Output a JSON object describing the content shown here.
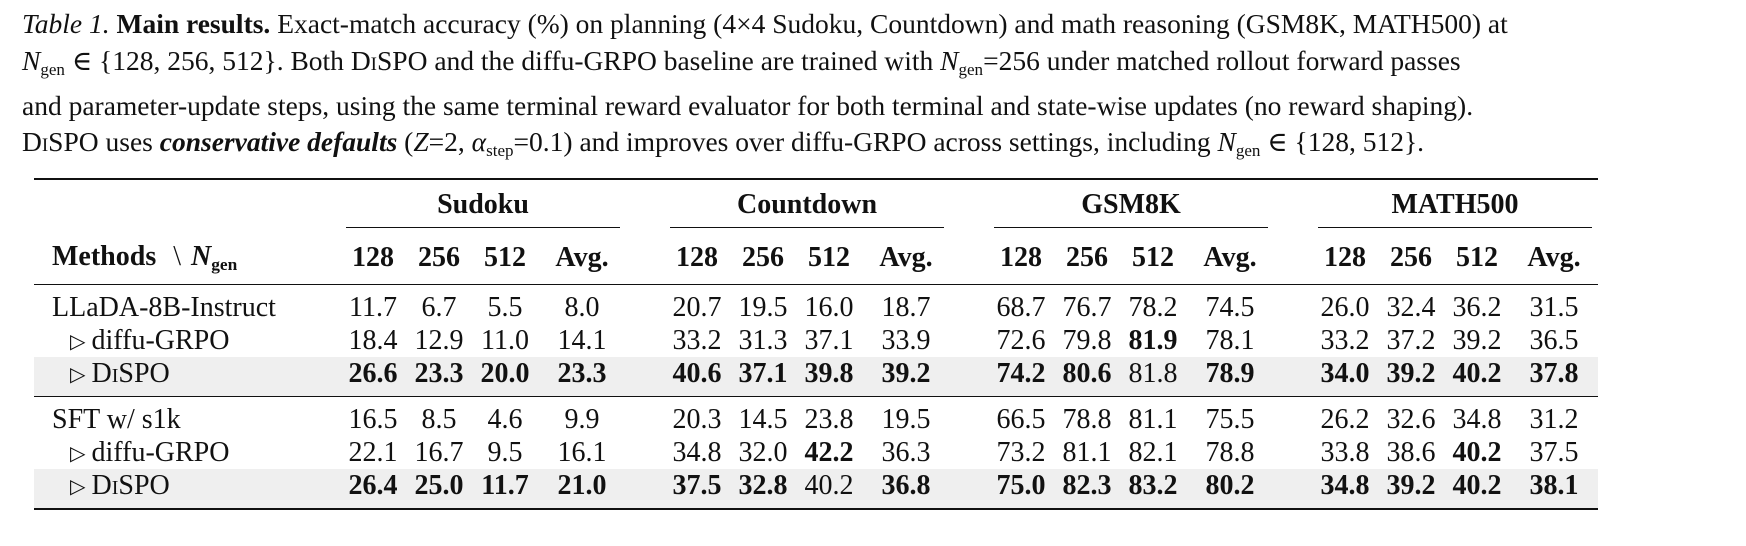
{
  "caption": {
    "label": "Table 1.",
    "title": "Main results.",
    "t1": " Exact-match accuracy (%) on planning (4×4 Sudoku, Countdown) and math reasoning (GSM8K, MATH500) at",
    "n_sym": "N",
    "n_sub": "gen",
    "t2": " ∈ {128, 256, 512}. Both ",
    "method_name": "DiSPO",
    "t3": " and the diffu-GRPO baseline are trained with ",
    "t4": "=256 under matched rollout forward passes",
    "line3": "and parameter-update steps, using the same terminal reward evaluator for both terminal and state-wise updates (no reward shaping).",
    "t5": " uses ",
    "emph": "conservative defaults",
    "t6": " (",
    "z_sym": "Z",
    "t7": "=2, ",
    "alpha_sym": "α",
    "alpha_sub": "step",
    "t8": "=0.1) and improves over diffu-GRPO across settings, including ",
    "t9": " ∈ {128, 512}."
  },
  "table": {
    "groups": [
      "Sudoku",
      "Countdown",
      "GSM8K",
      "MATH500"
    ],
    "method_header": "Methods",
    "header_sep": "\\",
    "subcols": [
      "128",
      "256",
      "512",
      "Avg."
    ],
    "row_prefix": "▷",
    "blocks": [
      {
        "rows": [
          {
            "method": "LLaDA-8B-Instruct",
            "sub": false,
            "highlight": false,
            "cells": [
              [
                "11.7",
                false
              ],
              [
                "6.7",
                false
              ],
              [
                "5.5",
                false
              ],
              [
                "8.0",
                false
              ],
              [
                "20.7",
                false
              ],
              [
                "19.5",
                false
              ],
              [
                "16.0",
                false
              ],
              [
                "18.7",
                false
              ],
              [
                "68.7",
                false
              ],
              [
                "76.7",
                false
              ],
              [
                "78.2",
                false
              ],
              [
                "74.5",
                false
              ],
              [
                "26.0",
                false
              ],
              [
                "32.4",
                false
              ],
              [
                "36.2",
                false
              ],
              [
                "31.5",
                false
              ]
            ]
          },
          {
            "method": "diffu-GRPO",
            "sub": true,
            "highlight": false,
            "cells": [
              [
                "18.4",
                false
              ],
              [
                "12.9",
                false
              ],
              [
                "11.0",
                false
              ],
              [
                "14.1",
                false
              ],
              [
                "33.2",
                false
              ],
              [
                "31.3",
                false
              ],
              [
                "37.1",
                false
              ],
              [
                "33.9",
                false
              ],
              [
                "72.6",
                false
              ],
              [
                "79.8",
                false
              ],
              [
                "81.9",
                true
              ],
              [
                "78.1",
                false
              ],
              [
                "33.2",
                false
              ],
              [
                "37.2",
                false
              ],
              [
                "39.2",
                false
              ],
              [
                "36.5",
                false
              ]
            ]
          },
          {
            "method": "DiSPO",
            "sub": true,
            "highlight": true,
            "smallcaps": true,
            "cells": [
              [
                "26.6",
                true
              ],
              [
                "23.3",
                true
              ],
              [
                "20.0",
                true
              ],
              [
                "23.3",
                true
              ],
              [
                "40.6",
                true
              ],
              [
                "37.1",
                true
              ],
              [
                "39.8",
                true
              ],
              [
                "39.2",
                true
              ],
              [
                "74.2",
                true
              ],
              [
                "80.6",
                true
              ],
              [
                "81.8",
                false
              ],
              [
                "78.9",
                true
              ],
              [
                "34.0",
                true
              ],
              [
                "39.2",
                true
              ],
              [
                "40.2",
                true
              ],
              [
                "37.8",
                true
              ]
            ]
          }
        ]
      },
      {
        "rows": [
          {
            "method": "SFT w/ s1k",
            "sub": false,
            "highlight": false,
            "cells": [
              [
                "16.5",
                false
              ],
              [
                "8.5",
                false
              ],
              [
                "4.6",
                false
              ],
              [
                "9.9",
                false
              ],
              [
                "20.3",
                false
              ],
              [
                "14.5",
                false
              ],
              [
                "23.8",
                false
              ],
              [
                "19.5",
                false
              ],
              [
                "66.5",
                false
              ],
              [
                "78.8",
                false
              ],
              [
                "81.1",
                false
              ],
              [
                "75.5",
                false
              ],
              [
                "26.2",
                false
              ],
              [
                "32.6",
                false
              ],
              [
                "34.8",
                false
              ],
              [
                "31.2",
                false
              ]
            ]
          },
          {
            "method": "diffu-GRPO",
            "sub": true,
            "highlight": false,
            "cells": [
              [
                "22.1",
                false
              ],
              [
                "16.7",
                false
              ],
              [
                "9.5",
                false
              ],
              [
                "16.1",
                false
              ],
              [
                "34.8",
                false
              ],
              [
                "32.0",
                false
              ],
              [
                "42.2",
                true
              ],
              [
                "36.3",
                false
              ],
              [
                "73.2",
                false
              ],
              [
                "81.1",
                false
              ],
              [
                "82.1",
                false
              ],
              [
                "78.8",
                false
              ],
              [
                "33.8",
                false
              ],
              [
                "38.6",
                false
              ],
              [
                "40.2",
                true
              ],
              [
                "37.5",
                false
              ]
            ]
          },
          {
            "method": "DiSPO",
            "sub": true,
            "highlight": true,
            "smallcaps": true,
            "cells": [
              [
                "26.4",
                true
              ],
              [
                "25.0",
                true
              ],
              [
                "11.7",
                true
              ],
              [
                "21.0",
                true
              ],
              [
                "37.5",
                true
              ],
              [
                "32.8",
                true
              ],
              [
                "40.2",
                false
              ],
              [
                "36.8",
                true
              ],
              [
                "75.0",
                true
              ],
              [
                "82.3",
                true
              ],
              [
                "83.2",
                true
              ],
              [
                "80.2",
                true
              ],
              [
                "34.8",
                true
              ],
              [
                "39.2",
                true
              ],
              [
                "40.2",
                true
              ],
              [
                "38.1",
                true
              ]
            ]
          }
        ]
      }
    ]
  }
}
